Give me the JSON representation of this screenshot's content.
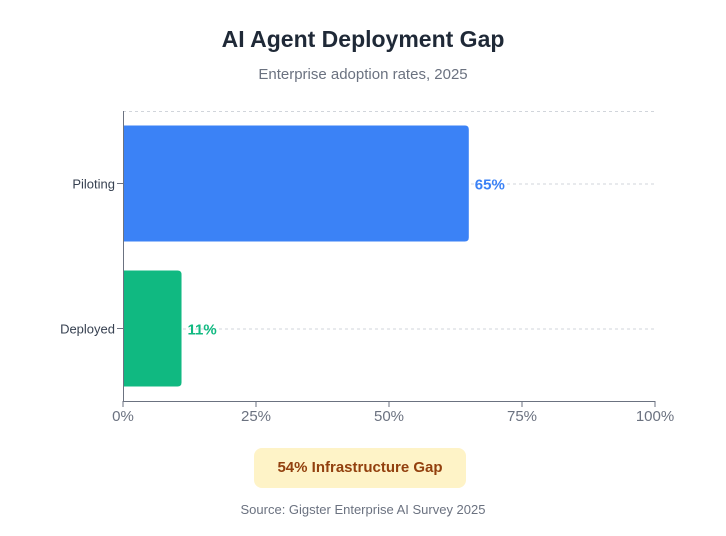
{
  "chart_data": {
    "type": "bar",
    "orientation": "horizontal",
    "title": "AI Agent Deployment Gap",
    "subtitle": "Enterprise adoption rates, 2025",
    "categories": [
      "Piloting",
      "Deployed"
    ],
    "values": [
      65,
      11
    ],
    "value_labels": [
      "65%",
      "11%"
    ],
    "colors": [
      "#3b82f6",
      "#10b981"
    ],
    "xlim": [
      0,
      100
    ],
    "x_ticks": [
      0,
      25,
      50,
      75,
      100
    ],
    "x_tick_labels": [
      "0%",
      "25%",
      "50%",
      "75%",
      "100%"
    ],
    "xlabel": "",
    "ylabel": "",
    "grid": true,
    "annotation": "54% Infrastructure Gap",
    "source": "Source: Gigster Enterprise AI Survey 2025"
  }
}
